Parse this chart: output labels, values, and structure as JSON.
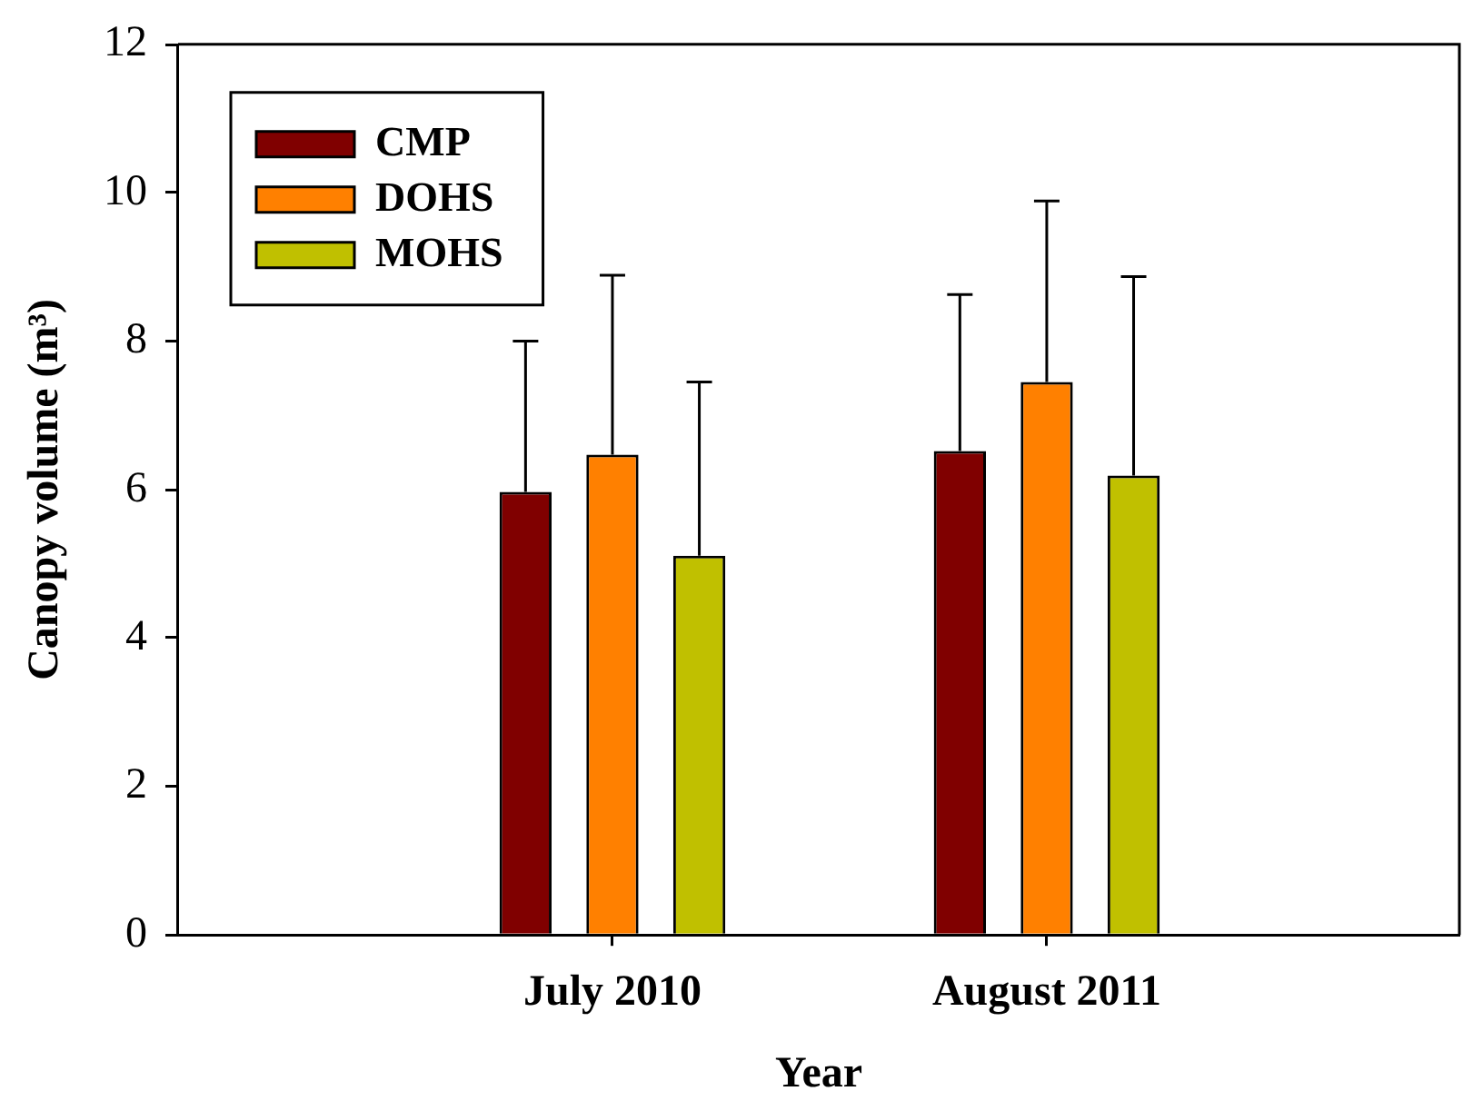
{
  "chart_data": {
    "type": "bar",
    "xlabel": "Year",
    "ylabel": "Canopy volume (m³)",
    "categories": [
      "July 2010",
      "August 2011"
    ],
    "series": [
      {
        "name": "CMP",
        "color": "#800000",
        "values": [
          5.97,
          6.52
        ],
        "errors": [
          [
            5.97,
            8.0
          ],
          [
            6.52,
            8.63
          ]
        ]
      },
      {
        "name": "DOHS",
        "color": "#ff8000",
        "values": [
          6.47,
          7.45
        ],
        "errors": [
          [
            6.47,
            8.89
          ],
          [
            7.45,
            9.89
          ]
        ]
      },
      {
        "name": "MOHS",
        "color": "#c0c000",
        "values": [
          5.11,
          6.19
        ],
        "errors": [
          [
            5.11,
            7.45
          ],
          [
            6.19,
            8.87
          ]
        ]
      }
    ],
    "ylim": [
      0,
      12
    ],
    "yticks": [
      0,
      2,
      4,
      6,
      8,
      10,
      12
    ],
    "legend": "top left"
  }
}
